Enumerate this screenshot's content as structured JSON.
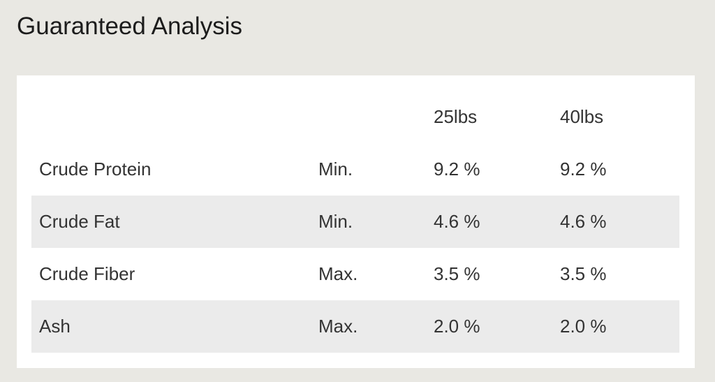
{
  "header": {
    "title": "Guaranteed Analysis"
  },
  "table": {
    "columns": [
      "25lbs",
      "40lbs"
    ],
    "rows": [
      [
        "Crude Protein",
        "Min.",
        "9.2 %",
        "9.2 %"
      ],
      [
        "Crude Fat",
        "Min.",
        "4.6 %",
        "4.6 %"
      ],
      [
        "Crude Fiber",
        "Max.",
        "3.5 %",
        "3.5 %"
      ],
      [
        "Ash",
        "Max.",
        "2.0 %",
        "2.0 %"
      ]
    ]
  }
}
